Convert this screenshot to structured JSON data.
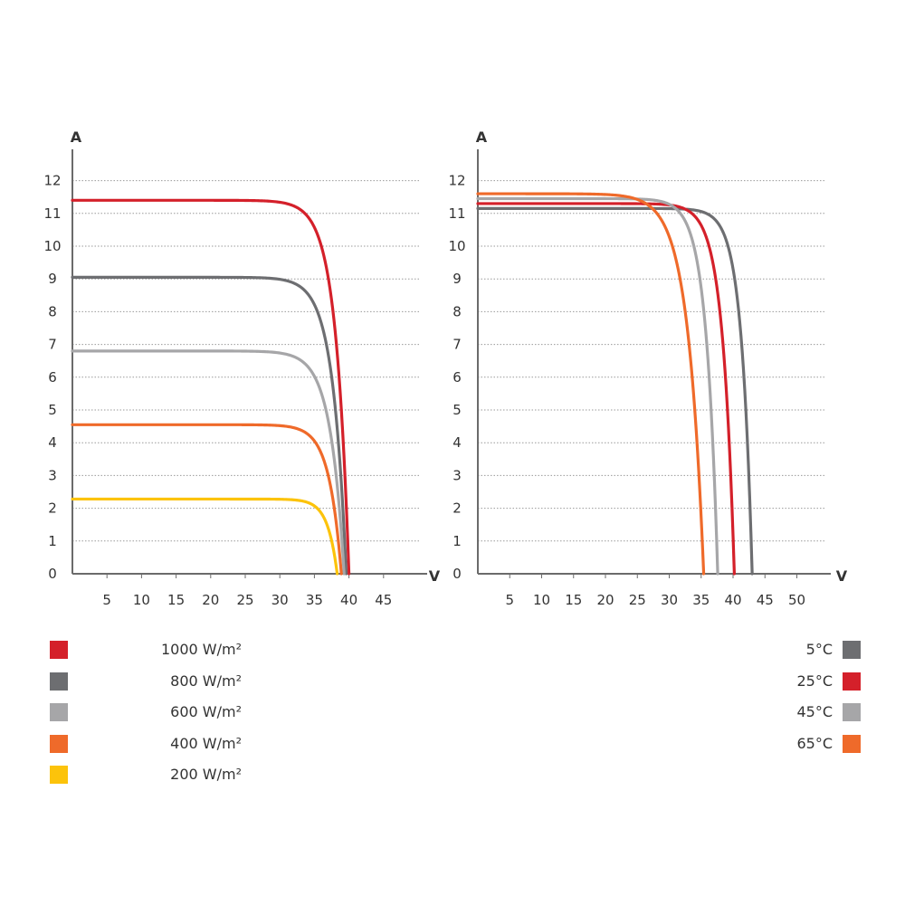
{
  "chart_data": [
    {
      "type": "line",
      "title": "",
      "xlabel": "V",
      "ylabel": "A",
      "xlim": [
        0,
        50
      ],
      "ylim": [
        0,
        13
      ],
      "x_ticks": [
        "5",
        "10",
        "15",
        "20",
        "25",
        "30",
        "35",
        "40",
        "45"
      ],
      "x_tick_values": [
        5,
        10,
        15,
        20,
        25,
        30,
        35,
        40,
        45
      ],
      "y_ticks": [
        "0",
        "1",
        "2",
        "3",
        "4",
        "5",
        "6",
        "7",
        "8",
        "9",
        "10",
        "11",
        "12"
      ],
      "grid": "horizontal dotted",
      "legend_position": "bottom-left",
      "series": [
        {
          "name": "1000 W/m²",
          "color": "#d4202a",
          "isc": 11.4,
          "voc": 40,
          "knee": 32
        },
        {
          "name": "800 W/m²",
          "color": "#6d6e71",
          "isc": 9.05,
          "voc": 39.6,
          "knee": 31.5
        },
        {
          "name": "600 W/m²",
          "color": "#a6a6a8",
          "isc": 6.8,
          "voc": 39.3,
          "knee": 31
        },
        {
          "name": "400 W/m²",
          "color": "#ef6a2a",
          "isc": 4.55,
          "voc": 38.9,
          "knee": 31.5
        },
        {
          "name": "200 W/m²",
          "color": "#fcc30b",
          "isc": 2.28,
          "voc": 38.3,
          "knee": 32.5
        }
      ]
    },
    {
      "type": "line",
      "title": "",
      "xlabel": "V",
      "ylabel": "A",
      "xlim": [
        0,
        55
      ],
      "ylim": [
        0,
        13
      ],
      "x_ticks": [
        "5",
        "10",
        "15",
        "20",
        "25",
        "30",
        "35",
        "40",
        "45",
        "50"
      ],
      "x_tick_values": [
        5,
        10,
        15,
        20,
        25,
        30,
        35,
        40,
        45,
        50
      ],
      "y_ticks": [
        "0",
        "1",
        "2",
        "3",
        "4",
        "5",
        "6",
        "7",
        "8",
        "9",
        "10",
        "11",
        "12"
      ],
      "grid": "horizontal dotted",
      "legend_position": "bottom-right",
      "series": [
        {
          "name": "5°C",
          "color": "#6d6e71",
          "isc": 11.15,
          "voc": 43,
          "knee": 36
        },
        {
          "name": "25°C",
          "color": "#d4202a",
          "isc": 11.3,
          "voc": 40.2,
          "knee": 32.5
        },
        {
          "name": "45°C",
          "color": "#a6a6a8",
          "isc": 11.45,
          "voc": 37.6,
          "knee": 30
        },
        {
          "name": "65°C",
          "color": "#ef6a2a",
          "isc": 11.6,
          "voc": 35.4,
          "knee": 25
        }
      ]
    }
  ]
}
